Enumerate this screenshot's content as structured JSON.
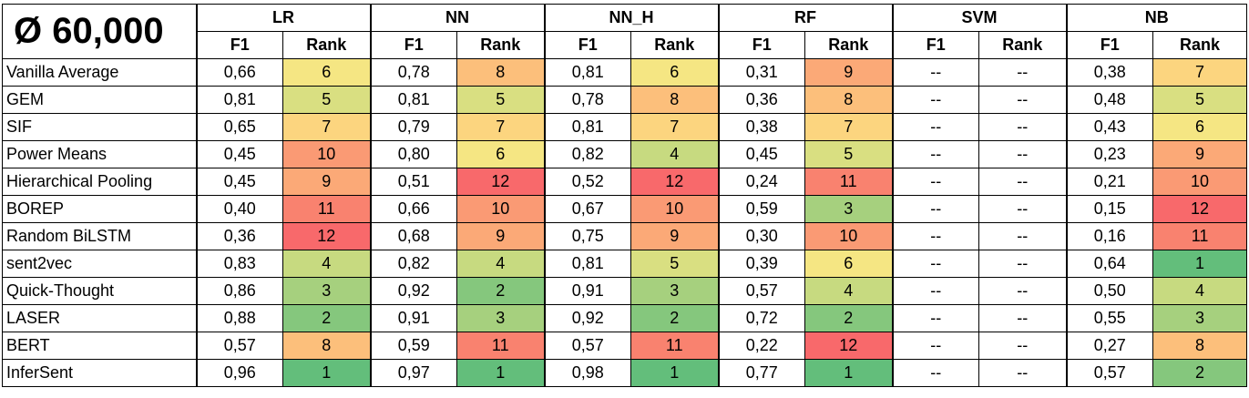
{
  "title": "Ø 60,000",
  "groups": [
    "LR",
    "NN",
    "NN_H",
    "RF",
    "SVM",
    "NB"
  ],
  "sub_f1": "F1",
  "sub_rank": "Rank",
  "rank_colors": {
    "1": "#63be7b",
    "2": "#85c77d",
    "3": "#a6d07e",
    "4": "#c7da80",
    "5": "#d9df81",
    "6": "#f5e683",
    "7": "#fcd57f",
    "8": "#fcbf7b",
    "9": "#fba977",
    "10": "#fa9a74",
    "11": "#f9826f",
    "12": "#f8696b"
  },
  "rows": [
    {
      "label": "Vanilla Average",
      "cells": [
        [
          "0,66",
          "6"
        ],
        [
          "0,78",
          "8"
        ],
        [
          "0,81",
          "6"
        ],
        [
          "0,31",
          "9"
        ],
        [
          "--",
          "--"
        ],
        [
          "0,38",
          "7"
        ]
      ]
    },
    {
      "label": "GEM",
      "cells": [
        [
          "0,81",
          "5"
        ],
        [
          "0,81",
          "5"
        ],
        [
          "0,78",
          "8"
        ],
        [
          "0,36",
          "8"
        ],
        [
          "--",
          "--"
        ],
        [
          "0,48",
          "5"
        ]
      ]
    },
    {
      "label": "SIF",
      "cells": [
        [
          "0,65",
          "7"
        ],
        [
          "0,79",
          "7"
        ],
        [
          "0,81",
          "7"
        ],
        [
          "0,38",
          "7"
        ],
        [
          "--",
          "--"
        ],
        [
          "0,43",
          "6"
        ]
      ]
    },
    {
      "label": "Power Means",
      "cells": [
        [
          "0,45",
          "10"
        ],
        [
          "0,80",
          "6"
        ],
        [
          "0,82",
          "4"
        ],
        [
          "0,45",
          "5"
        ],
        [
          "--",
          "--"
        ],
        [
          "0,23",
          "9"
        ]
      ]
    },
    {
      "label": "Hierarchical Pooling",
      "cells": [
        [
          "0,45",
          "9"
        ],
        [
          "0,51",
          "12"
        ],
        [
          "0,52",
          "12"
        ],
        [
          "0,24",
          "11"
        ],
        [
          "--",
          "--"
        ],
        [
          "0,21",
          "10"
        ]
      ]
    },
    {
      "label": "BOREP",
      "cells": [
        [
          "0,40",
          "11"
        ],
        [
          "0,66",
          "10"
        ],
        [
          "0,67",
          "10"
        ],
        [
          "0,59",
          "3"
        ],
        [
          "--",
          "--"
        ],
        [
          "0,15",
          "12"
        ]
      ]
    },
    {
      "label": "Random BiLSTM",
      "cells": [
        [
          "0,36",
          "12"
        ],
        [
          "0,68",
          "9"
        ],
        [
          "0,75",
          "9"
        ],
        [
          "0,30",
          "10"
        ],
        [
          "--",
          "--"
        ],
        [
          "0,16",
          "11"
        ]
      ]
    },
    {
      "label": "sent2vec",
      "cells": [
        [
          "0,83",
          "4"
        ],
        [
          "0,82",
          "4"
        ],
        [
          "0,81",
          "5"
        ],
        [
          "0,39",
          "6"
        ],
        [
          "--",
          "--"
        ],
        [
          "0,64",
          "1"
        ]
      ]
    },
    {
      "label": "Quick-Thought",
      "cells": [
        [
          "0,86",
          "3"
        ],
        [
          "0,92",
          "2"
        ],
        [
          "0,91",
          "3"
        ],
        [
          "0,57",
          "4"
        ],
        [
          "--",
          "--"
        ],
        [
          "0,50",
          "4"
        ]
      ]
    },
    {
      "label": "LASER",
      "cells": [
        [
          "0,88",
          "2"
        ],
        [
          "0,91",
          "3"
        ],
        [
          "0,92",
          "2"
        ],
        [
          "0,72",
          "2"
        ],
        [
          "--",
          "--"
        ],
        [
          "0,55",
          "3"
        ]
      ]
    },
    {
      "label": "BERT",
      "cells": [
        [
          "0,57",
          "8"
        ],
        [
          "0,59",
          "11"
        ],
        [
          "0,57",
          "11"
        ],
        [
          "0,22",
          "12"
        ],
        [
          "--",
          "--"
        ],
        [
          "0,27",
          "8"
        ]
      ]
    },
    {
      "label": "InferSent",
      "cells": [
        [
          "0,96",
          "1"
        ],
        [
          "0,97",
          "1"
        ],
        [
          "0,98",
          "1"
        ],
        [
          "0,77",
          "1"
        ],
        [
          "--",
          "--"
        ],
        [
          "0,57",
          "2"
        ]
      ]
    }
  ]
}
